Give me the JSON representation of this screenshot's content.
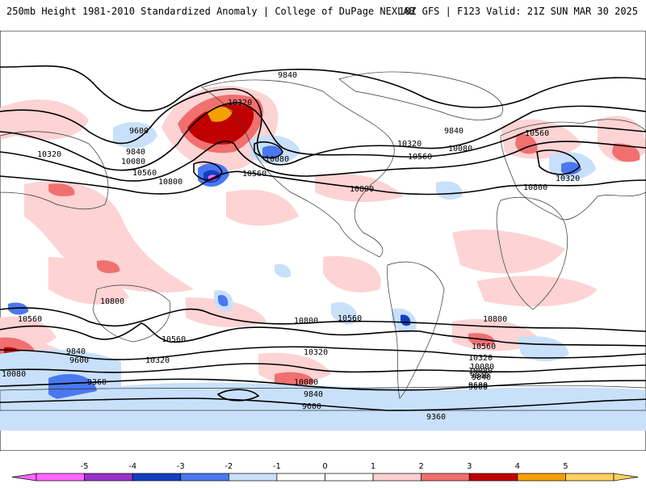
{
  "header": {
    "left_title": "250mb Height 1981-2010 Standardized Anomaly | College of DuPage NEXLAB",
    "right_title": "18Z GFS | F123 Valid: 21Z SUN MAR 30 2025"
  },
  "map": {
    "projection": "global cylindrical",
    "field": "250mb geopotential height with standardized anomaly shading",
    "contour_labels": [
      "9840",
      "9600",
      "10320",
      "9840",
      "10080",
      "10560",
      "10800",
      "10320",
      "10080",
      "10560",
      "9840",
      "10080",
      "10320",
      "10560",
      "10800",
      "10560",
      "10320",
      "10800",
      "10560",
      "10080",
      "9840",
      "9600",
      "10320",
      "10800",
      "10560",
      "10800",
      "10560",
      "10320",
      "10080",
      "9360",
      "9840",
      "9600",
      "10080",
      "9840",
      "9600",
      "9360",
      "10800",
      "10560",
      "10320",
      "10080",
      "9840",
      "9600"
    ]
  },
  "colorbar": {
    "tick_labels": [
      "-5",
      "-4",
      "-3",
      "-2",
      "-1",
      "0",
      "1",
      "2",
      "3",
      "4",
      "5"
    ],
    "colors": [
      "#ff66ff",
      "#9933cc",
      "#1040c0",
      "#4a78f0",
      "#c8e0fa",
      "#ffffff",
      "#ffffff",
      "#fdcfcf",
      "#f07070",
      "#c00000",
      "#f5a000",
      "#ffd060"
    ]
  }
}
